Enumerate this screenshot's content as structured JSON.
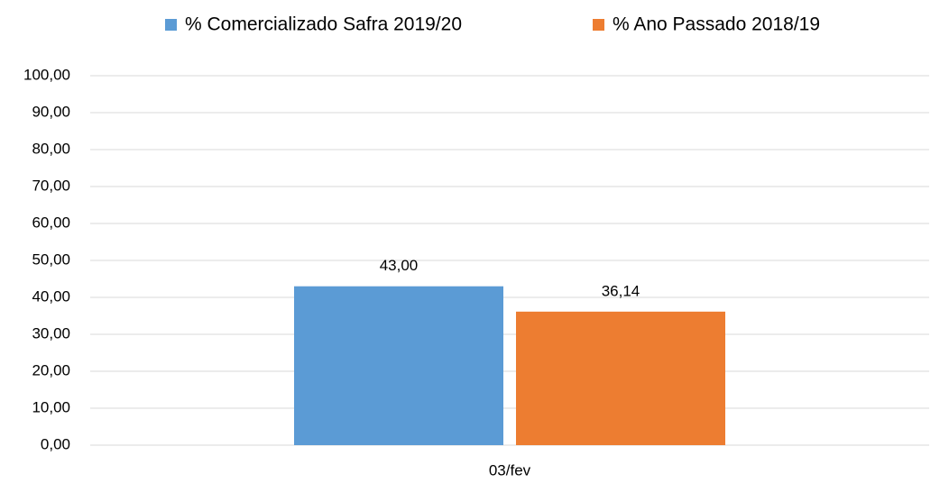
{
  "chart_data": {
    "type": "bar",
    "categories": [
      "03/fev"
    ],
    "series": [
      {
        "name": "% Comercializado Safra 2019/20",
        "color": "#5b9bd5",
        "values": [
          43.0
        ],
        "value_labels": [
          "43,00"
        ]
      },
      {
        "name": "% Ano Passado 2018/19",
        "color": "#ed7d31",
        "values": [
          36.14
        ],
        "value_labels": [
          "36,14"
        ]
      }
    ],
    "ylim": [
      0,
      100
    ],
    "yticks": [
      {
        "value": 0,
        "label": "0,00"
      },
      {
        "value": 10,
        "label": "10,00"
      },
      {
        "value": 20,
        "label": "20,00"
      },
      {
        "value": 30,
        "label": "30,00"
      },
      {
        "value": 40,
        "label": "40,00"
      },
      {
        "value": 50,
        "label": "50,00"
      },
      {
        "value": 60,
        "label": "60,00"
      },
      {
        "value": 70,
        "label": "70,00"
      },
      {
        "value": 80,
        "label": "80,00"
      },
      {
        "value": 90,
        "label": "90,00"
      },
      {
        "value": 100,
        "label": "100,00"
      }
    ],
    "grid": true,
    "legend": "top"
  }
}
